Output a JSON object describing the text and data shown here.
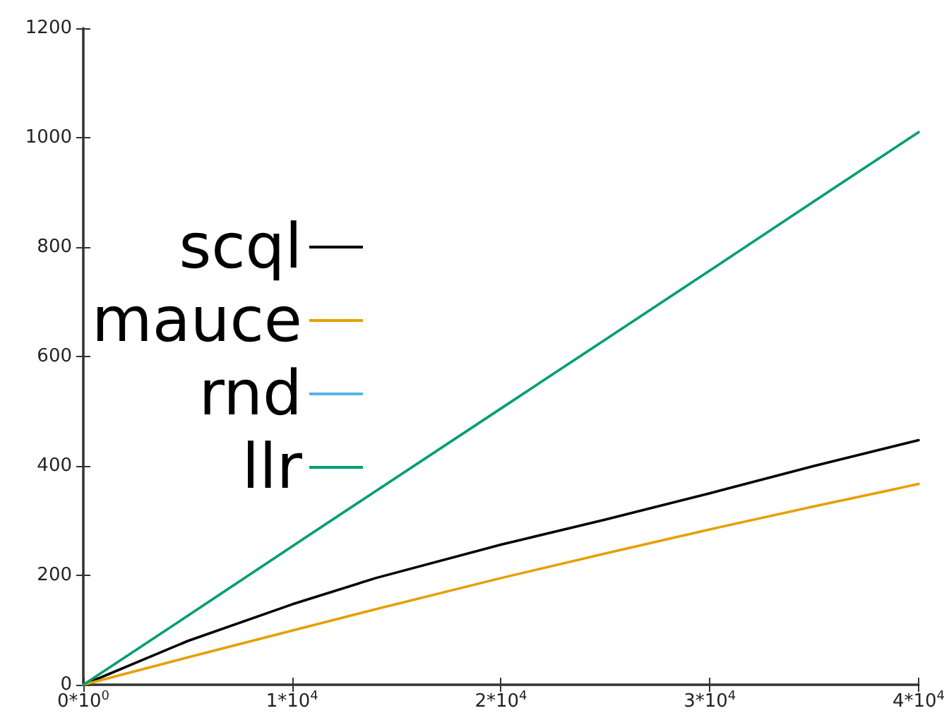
{
  "chart_data": {
    "type": "line",
    "x": [
      0,
      5000,
      10000,
      14000,
      20000,
      25000,
      30000,
      35000,
      40000
    ],
    "series": [
      {
        "name": "scql",
        "color": "#000000",
        "values": [
          0,
          80,
          147,
          195,
          256,
          302,
          350,
          400,
          447
        ]
      },
      {
        "name": "mauce",
        "color": "#e69f00",
        "values": [
          0,
          50,
          99,
          138,
          195,
          240,
          284,
          326,
          367
        ]
      },
      {
        "name": "rnd",
        "color": "#56b4e9",
        "values": [
          null,
          null,
          null,
          null,
          null,
          null,
          null,
          null,
          null
        ]
      },
      {
        "name": "llr",
        "color": "#009e73",
        "values": [
          0,
          126,
          253,
          354,
          505,
          631,
          757,
          884,
          1010
        ]
      }
    ],
    "xlim": [
      0,
      40000
    ],
    "xticks": [
      {
        "value": 0,
        "label": "0*10$^{0}$"
      },
      {
        "value": 10000,
        "label": "1*10$^{4}$"
      },
      {
        "value": 20000,
        "label": "2*10$^{4}$"
      },
      {
        "value": 30000,
        "label": "3*10$^{4}$"
      },
      {
        "value": 40000,
        "label": "4*10$^{4}$"
      }
    ],
    "ylim": [
      0,
      1200
    ],
    "yticks": [
      0,
      200,
      400,
      600,
      800,
      1000,
      1200
    ],
    "grid": false,
    "legend": "left",
    "marker": "none",
    "line_style": "solid"
  }
}
